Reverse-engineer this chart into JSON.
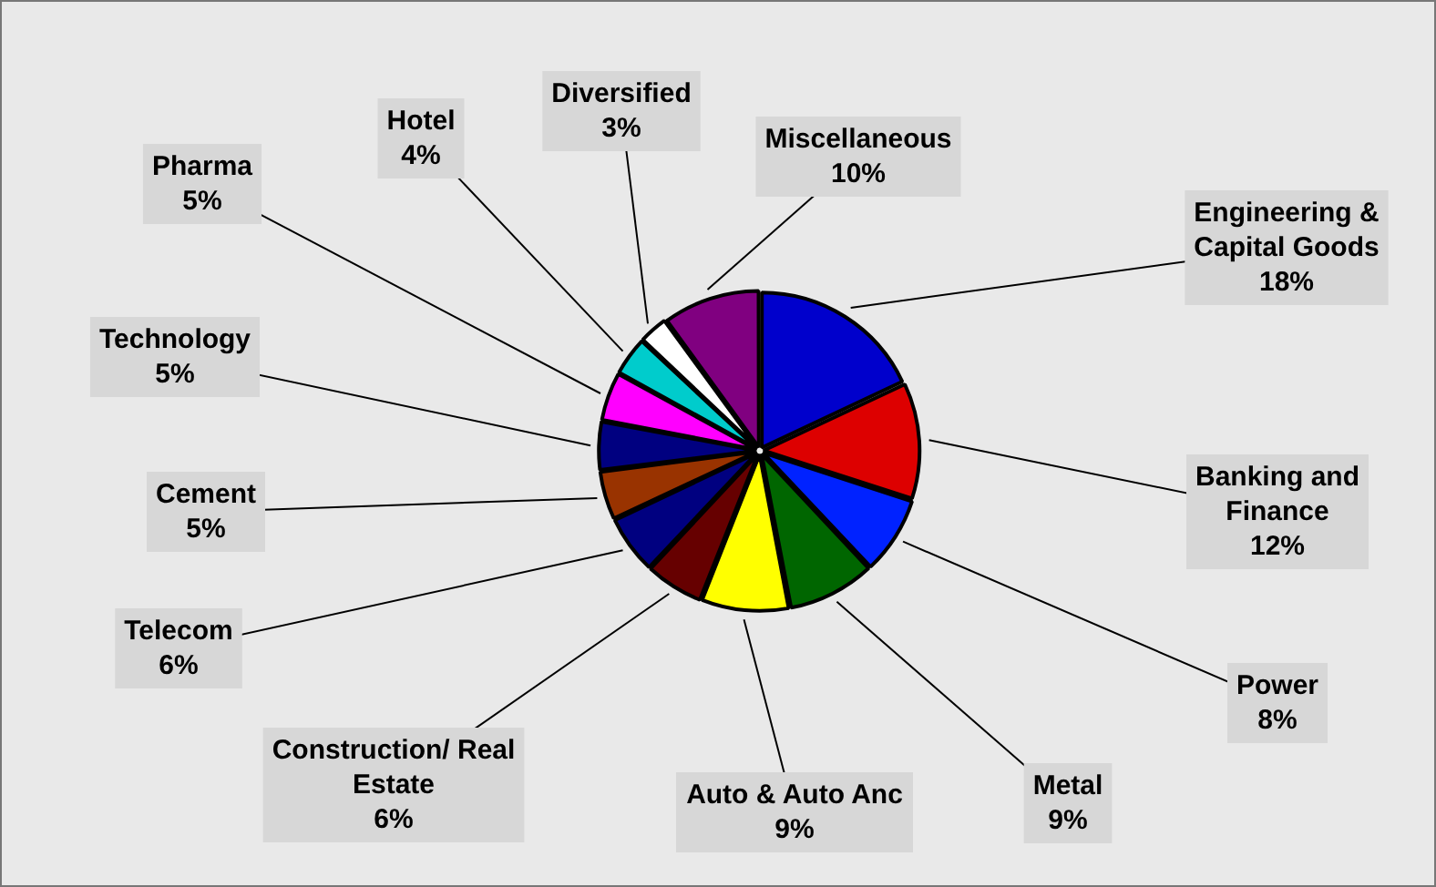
{
  "chart_data": {
    "type": "pie",
    "categories": [
      "Engineering & Capital Goods",
      "Banking and Finance",
      "Power",
      "Metal",
      "Auto & Auto Anc",
      "Construction/ Real Estate",
      "Telecom",
      "Cement",
      "Technology",
      "Pharma",
      "Hotel",
      "Diversified",
      "Miscellaneous"
    ],
    "values": [
      18,
      12,
      8,
      9,
      9,
      6,
      6,
      5,
      5,
      5,
      4,
      3,
      10
    ],
    "value_labels": [
      "18%",
      "12%",
      "8%",
      "9%",
      "9%",
      "6%",
      "6%",
      "5%",
      "5%",
      "5%",
      "4%",
      "3%",
      "10%"
    ],
    "colors": [
      "#0000cc",
      "#dd0000",
      "#0022ff",
      "#006600",
      "#ffff00",
      "#660000",
      "#000080",
      "#993300",
      "#000080",
      "#ff00ff",
      "#00cccc",
      "#ffffff",
      "#800080"
    ],
    "legend": false
  }
}
